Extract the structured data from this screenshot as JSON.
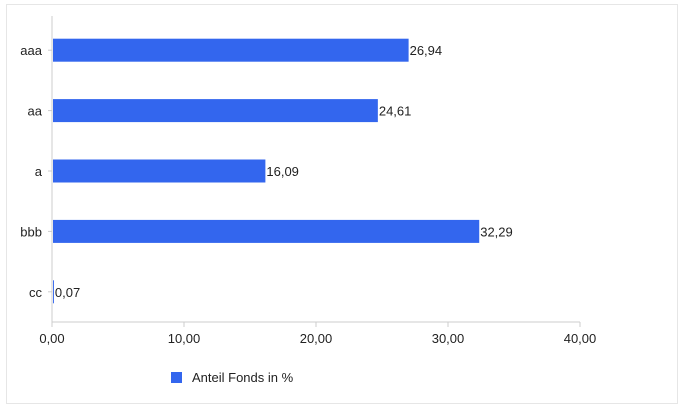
{
  "chart_data": {
    "type": "bar",
    "orientation": "horizontal",
    "categories": [
      "aaa",
      "aa",
      "a",
      "bbb",
      "cc"
    ],
    "series": [
      {
        "name": "Anteil Fonds in %",
        "values": [
          26.94,
          24.61,
          16.09,
          32.29,
          0.07
        ],
        "labels": [
          "26,94",
          "24,61",
          "16,09",
          "32,29",
          "0,07"
        ]
      }
    ],
    "xlim": [
      0,
      40
    ],
    "x_ticks": [
      "0,00",
      "10,00",
      "20,00",
      "30,00",
      "40,00"
    ],
    "grid": false,
    "legend_position": "bottom",
    "colors": {
      "bar": "#3366ee",
      "axis": "#cccccc"
    }
  }
}
